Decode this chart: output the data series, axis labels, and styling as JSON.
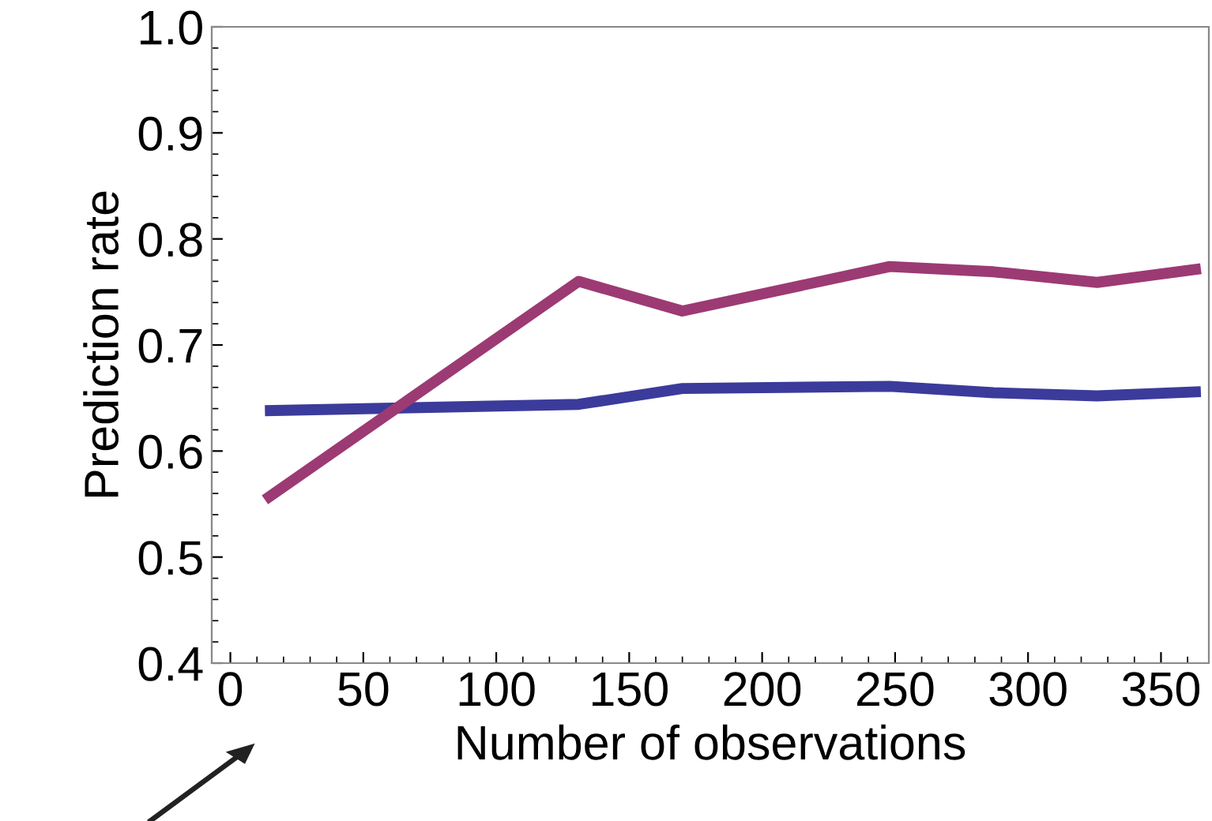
{
  "chart_data": {
    "type": "line",
    "xlabel": "Number of observations",
    "ylabel": "Prediction rate",
    "xlim": [
      -7,
      368
    ],
    "xticks": [
      0,
      50,
      100,
      150,
      200,
      250,
      300,
      350
    ],
    "ylim": [
      0.4,
      1.0
    ],
    "yticks": [
      {
        "value": 0.4,
        "label": "0.4"
      },
      {
        "value": 0.5,
        "label": "0.5"
      },
      {
        "value": 0.6,
        "label": "0.6"
      },
      {
        "value": 0.7,
        "label": "0.7"
      },
      {
        "value": 0.8,
        "label": "0.8"
      },
      {
        "value": 0.9,
        "label": "0.9"
      },
      {
        "value": 1.0,
        "label": "1.0"
      }
    ],
    "x": [
      13,
      131,
      170,
      248,
      287,
      326,
      365
    ],
    "series": [
      {
        "color": "#3b3b9b",
        "values": [
          0.638,
          0.644,
          0.659,
          0.661,
          0.655,
          0.652,
          0.656
        ]
      },
      {
        "color": "#9c3a74",
        "values": [
          0.554,
          0.76,
          0.732,
          0.774,
          0.769,
          0.759,
          0.772
        ]
      }
    ],
    "grid": false,
    "legend": false,
    "line_style": "solid",
    "marker": "none"
  }
}
